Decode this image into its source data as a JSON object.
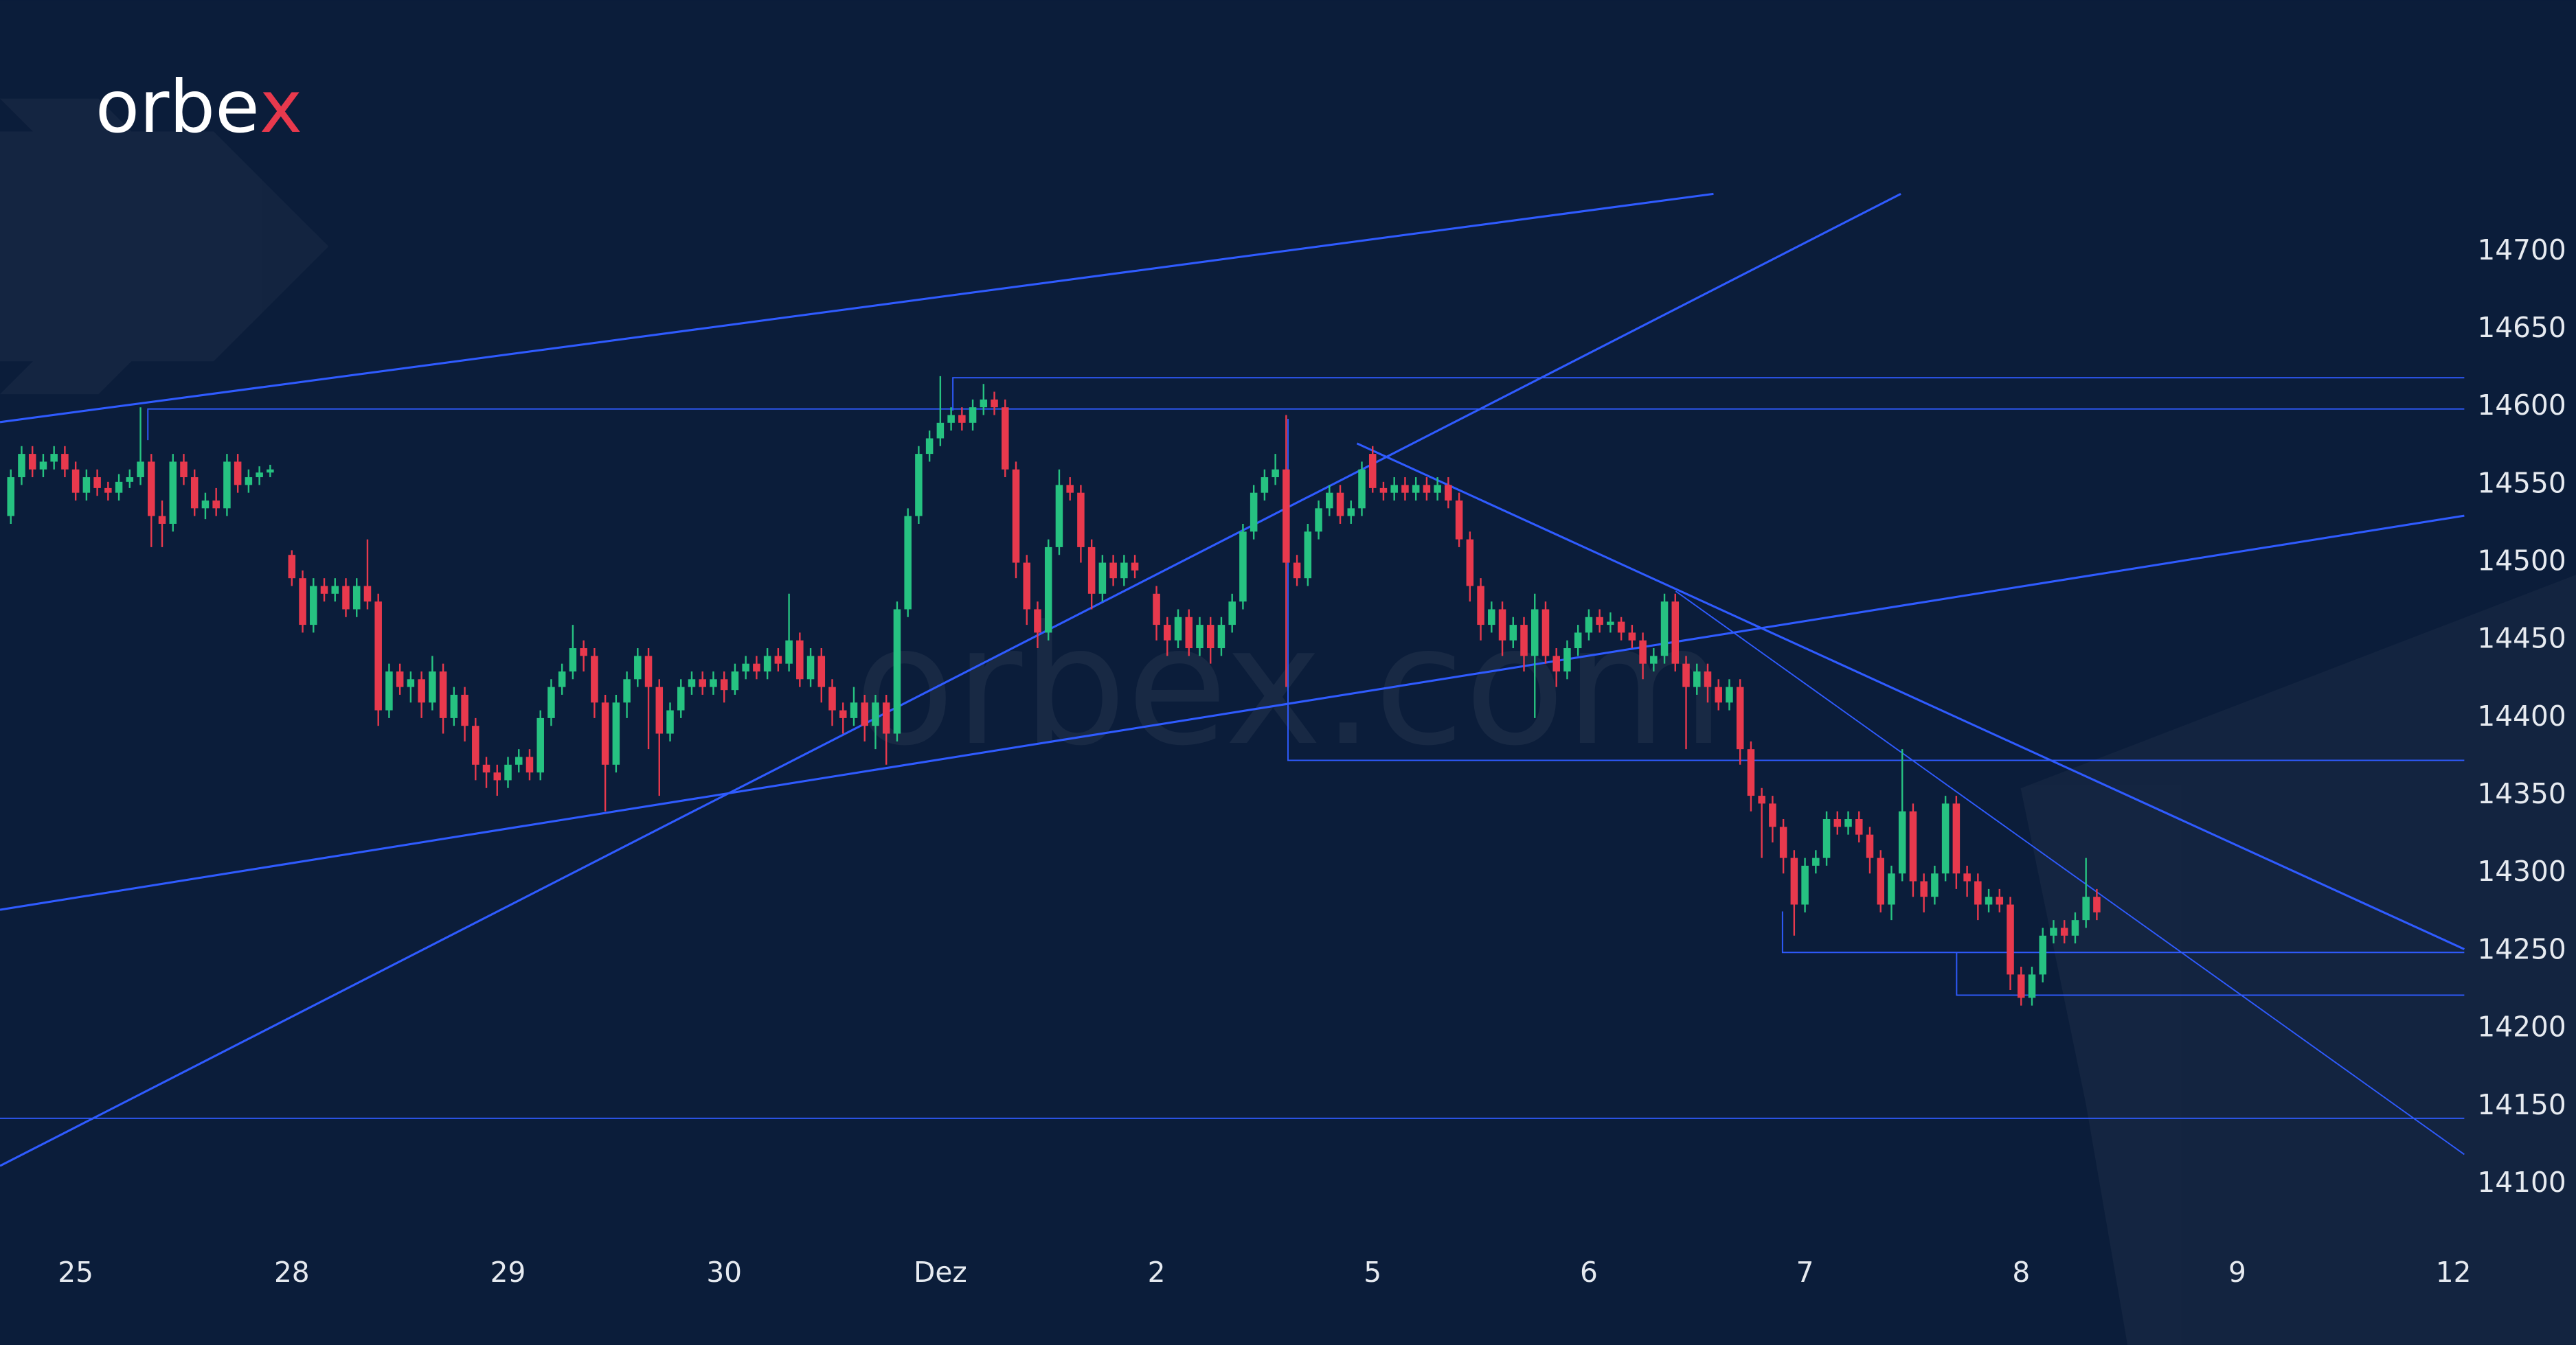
{
  "logo": "orbex",
  "watermark": "orbex.com",
  "chart_data": {
    "type": "candlestick",
    "up_color": "#26c281",
    "down_color": "#e8394d",
    "xlim": [
      -7,
      221
    ],
    "ylim": [
      14059,
      14862
    ],
    "xticks": [
      {
        "value": 0,
        "label": "25"
      },
      {
        "value": 20,
        "label": "28"
      },
      {
        "value": 40,
        "label": "29"
      },
      {
        "value": 60,
        "label": "30"
      },
      {
        "value": 80,
        "label": "Dez"
      },
      {
        "value": 100,
        "label": "2"
      },
      {
        "value": 120,
        "label": "5"
      },
      {
        "value": 140,
        "label": "6"
      },
      {
        "value": 160,
        "label": "7"
      },
      {
        "value": 180,
        "label": "8"
      },
      {
        "value": 200,
        "label": "9"
      },
      {
        "value": 220,
        "label": "12"
      }
    ],
    "yticks": [
      14100,
      14150,
      14200,
      14250,
      14300,
      14350,
      14400,
      14450,
      14500,
      14550,
      14600,
      14650,
      14700
    ],
    "x": [
      -6,
      -5,
      -4,
      -3,
      -2,
      -1,
      0,
      1,
      2,
      3,
      4,
      5,
      6,
      7,
      8,
      9,
      10,
      11,
      12,
      13,
      14,
      15,
      16,
      17,
      18,
      20,
      21,
      22,
      23,
      24,
      25,
      26,
      27,
      28,
      29,
      30,
      31,
      32,
      33,
      34,
      35,
      36,
      37,
      38,
      39,
      40,
      41,
      42,
      43,
      44,
      45,
      46,
      47,
      48,
      49,
      50,
      51,
      52,
      53,
      54,
      55,
      56,
      57,
      58,
      59,
      60,
      61,
      62,
      63,
      64,
      65,
      66,
      67,
      68,
      69,
      70,
      71,
      72,
      73,
      74,
      75,
      76,
      77,
      78,
      79,
      80,
      81,
      82,
      83,
      84,
      85,
      86,
      87,
      88,
      89,
      90,
      91,
      92,
      93,
      94,
      95,
      96,
      97,
      98,
      100,
      101,
      102,
      103,
      104,
      105,
      106,
      107,
      108,
      109,
      110,
      111,
      112,
      113,
      114,
      115,
      116,
      117,
      118,
      119,
      120,
      121,
      122,
      123,
      124,
      125,
      126,
      127,
      128,
      129,
      130,
      131,
      132,
      133,
      134,
      135,
      136,
      137,
      138,
      139,
      140,
      141,
      142,
      143,
      144,
      145,
      146,
      147,
      148,
      149,
      150,
      151,
      152,
      153,
      154,
      155,
      156,
      157,
      158,
      159,
      160,
      161,
      162,
      163,
      164,
      165,
      166,
      167,
      168,
      169,
      170,
      171,
      172,
      173,
      174,
      175,
      176,
      177,
      178,
      179,
      180,
      181,
      182,
      183,
      184,
      185,
      186,
      187
    ],
    "open": [
      14530,
      14555,
      14570,
      14560,
      14565,
      14570,
      14560,
      14545,
      14555,
      14548,
      14545,
      14552,
      14555,
      14565,
      14530,
      14525,
      14565,
      14555,
      14535,
      14540,
      14535,
      14565,
      14550,
      14555,
      14558,
      14505,
      14490,
      14460,
      14485,
      14480,
      14485,
      14470,
      14485,
      14475,
      14405,
      14430,
      14420,
      14425,
      14410,
      14430,
      14400,
      14415,
      14395,
      14370,
      14365,
      14360,
      14370,
      14375,
      14365,
      14400,
      14420,
      14430,
      14445,
      14440,
      14410,
      14370,
      14410,
      14425,
      14440,
      14420,
      14390,
      14405,
      14420,
      14425,
      14420,
      14425,
      14418,
      14430,
      14435,
      14430,
      14440,
      14435,
      14450,
      14425,
      14440,
      14420,
      14405,
      14400,
      14410,
      14395,
      14410,
      14390,
      14470,
      14530,
      14570,
      14580,
      14590,
      14595,
      14590,
      14600,
      14605,
      14600,
      14560,
      14500,
      14470,
      14455,
      14510,
      14550,
      14545,
      14510,
      14480,
      14500,
      14490,
      14500,
      14480,
      14460,
      14450,
      14465,
      14445,
      14460,
      14445,
      14460,
      14475,
      14520,
      14545,
      14555,
      14560,
      14500,
      14490,
      14520,
      14535,
      14545,
      14530,
      14535,
      14570,
      14548,
      14545,
      14550,
      14545,
      14550,
      14545,
      14550,
      14540,
      14515,
      14485,
      14460,
      14470,
      14450,
      14460,
      14440,
      14470,
      14440,
      14430,
      14445,
      14455,
      14465,
      14460,
      14462,
      14455,
      14450,
      14435,
      14440,
      14475,
      14435,
      14420,
      14430,
      14420,
      14410,
      14420,
      14380,
      14350,
      14345,
      14330,
      14310,
      14280,
      14305,
      14310,
      14335,
      14330,
      14335,
      14325,
      14310,
      14280,
      14300,
      14340,
      14295,
      14285,
      14300,
      14345,
      14300,
      14295,
      14280,
      14285,
      14280,
      14235,
      14220,
      14235,
      14260,
      14265,
      14260,
      14270,
      14285
    ],
    "high": [
      14560,
      14575,
      14575,
      14570,
      14575,
      14575,
      14565,
      14560,
      14560,
      14552,
      14557,
      14560,
      14600,
      14570,
      14540,
      14570,
      14570,
      14560,
      14545,
      14548,
      14570,
      14570,
      14560,
      14562,
      14563,
      14508,
      14495,
      14490,
      14490,
      14490,
      14490,
      14490,
      14515,
      14480,
      14435,
      14435,
      14430,
      14430,
      14440,
      14435,
      14420,
      14420,
      14400,
      14375,
      14370,
      14375,
      14380,
      14380,
      14405,
      14425,
      14435,
      14460,
      14450,
      14445,
      14415,
      14415,
      14430,
      14445,
      14445,
      14425,
      14410,
      14425,
      14430,
      14430,
      14430,
      14430,
      14435,
      14440,
      14440,
      14445,
      14445,
      14480,
      14455,
      14445,
      14445,
      14425,
      14410,
      14420,
      14415,
      14415,
      14415,
      14475,
      14535,
      14575,
      14585,
      14620,
      14600,
      14600,
      14605,
      14615,
      14610,
      14605,
      14565,
      14505,
      14475,
      14515,
      14560,
      14555,
      14550,
      14515,
      14505,
      14505,
      14505,
      14505,
      14485,
      14465,
      14470,
      14470,
      14465,
      14465,
      14465,
      14480,
      14525,
      14550,
      14560,
      14570,
      14595,
      14505,
      14525,
      14540,
      14550,
      14550,
      14540,
      14565,
      14575,
      14552,
      14555,
      14555,
      14555,
      14555,
      14555,
      14555,
      14545,
      14520,
      14490,
      14475,
      14475,
      14465,
      14465,
      14480,
      14475,
      14445,
      14450,
      14460,
      14470,
      14470,
      14468,
      14465,
      14460,
      14455,
      14445,
      14480,
      14480,
      14440,
      14435,
      14435,
      14425,
      14425,
      14425,
      14385,
      14355,
      14350,
      14335,
      14315,
      14310,
      14315,
      14340,
      14340,
      14340,
      14340,
      14330,
      14315,
      14305,
      14380,
      14345,
      14300,
      14305,
      14350,
      14350,
      14305,
      14300,
      14290,
      14290,
      14285,
      14240,
      14240,
      14265,
      14270,
      14270,
      14275,
      14310,
      14290
    ],
    "low": [
      14525,
      14550,
      14555,
      14555,
      14560,
      14555,
      14540,
      14540,
      14543,
      14540,
      14540,
      14548,
      14550,
      14510,
      14510,
      14520,
      14550,
      14530,
      14528,
      14530,
      14530,
      14545,
      14545,
      14550,
      14555,
      14485,
      14455,
      14455,
      14475,
      14475,
      14465,
      14465,
      14470,
      14395,
      14400,
      14415,
      14410,
      14400,
      14405,
      14390,
      14395,
      14385,
      14360,
      14355,
      14350,
      14355,
      14365,
      14360,
      14360,
      14395,
      14415,
      14425,
      14430,
      14400,
      14340,
      14365,
      14400,
      14420,
      14380,
      14350,
      14385,
      14400,
      14415,
      14415,
      14415,
      14410,
      14415,
      14425,
      14425,
      14425,
      14430,
      14430,
      14420,
      14420,
      14410,
      14395,
      14390,
      14395,
      14385,
      14380,
      14370,
      14385,
      14465,
      14525,
      14565,
      14575,
      14585,
      14585,
      14585,
      14595,
      14595,
      14555,
      14490,
      14460,
      14445,
      14450,
      14505,
      14540,
      14500,
      14470,
      14475,
      14485,
      14485,
      14490,
      14450,
      14440,
      14445,
      14440,
      14440,
      14435,
      14440,
      14455,
      14470,
      14515,
      14540,
      14550,
      14420,
      14485,
      14485,
      14515,
      14530,
      14525,
      14525,
      14530,
      14545,
      14540,
      14540,
      14540,
      14540,
      14540,
      14540,
      14535,
      14510,
      14475,
      14450,
      14455,
      14440,
      14445,
      14430,
      14400,
      14435,
      14420,
      14425,
      14440,
      14450,
      14455,
      14455,
      14450,
      14445,
      14425,
      14430,
      14435,
      14430,
      14380,
      14415,
      14410,
      14405,
      14405,
      14370,
      14340,
      14310,
      14320,
      14300,
      14260,
      14275,
      14300,
      14305,
      14325,
      14325,
      14320,
      14300,
      14275,
      14270,
      14295,
      14285,
      14275,
      14280,
      14295,
      14290,
      14285,
      14270,
      14275,
      14275,
      14225,
      14215,
      14215,
      14230,
      14255,
      14255,
      14255,
      14265,
      14270
    ],
    "close": [
      14555,
      14570,
      14560,
      14565,
      14570,
      14560,
      14545,
      14555,
      14548,
      14545,
      14552,
      14555,
      14565,
      14530,
      14525,
      14565,
      14555,
      14535,
      14540,
      14535,
      14565,
      14550,
      14555,
      14558,
      14560,
      14490,
      14460,
      14485,
      14480,
      14485,
      14470,
      14485,
      14475,
      14405,
      14430,
      14420,
      14425,
      14410,
      14430,
      14400,
      14415,
      14395,
      14370,
      14365,
      14360,
      14370,
      14375,
      14365,
      14400,
      14420,
      14430,
      14445,
      14440,
      14410,
      14370,
      14410,
      14425,
      14440,
      14420,
      14390,
      14405,
      14420,
      14425,
      14420,
      14425,
      14418,
      14430,
      14435,
      14430,
      14440,
      14435,
      14450,
      14425,
      14440,
      14420,
      14405,
      14400,
      14410,
      14395,
      14410,
      14390,
      14470,
      14530,
      14570,
      14580,
      14590,
      14595,
      14590,
      14600,
      14605,
      14600,
      14560,
      14500,
      14470,
      14455,
      14510,
      14550,
      14545,
      14510,
      14480,
      14500,
      14490,
      14500,
      14495,
      14460,
      14450,
      14465,
      14445,
      14460,
      14445,
      14460,
      14475,
      14520,
      14545,
      14555,
      14560,
      14500,
      14490,
      14520,
      14535,
      14545,
      14530,
      14535,
      14560,
      14548,
      14545,
      14550,
      14545,
      14550,
      14545,
      14550,
      14540,
      14515,
      14485,
      14460,
      14470,
      14450,
      14460,
      14440,
      14470,
      14440,
      14430,
      14445,
      14455,
      14465,
      14460,
      14462,
      14455,
      14450,
      14435,
      14440,
      14475,
      14435,
      14420,
      14430,
      14420,
      14410,
      14420,
      14380,
      14350,
      14345,
      14330,
      14310,
      14280,
      14305,
      14310,
      14335,
      14330,
      14335,
      14325,
      14310,
      14280,
      14300,
      14340,
      14295,
      14285,
      14300,
      14345,
      14300,
      14295,
      14280,
      14285,
      14280,
      14235,
      14220,
      14235,
      14260,
      14265,
      14260,
      14270,
      14285,
      14275
    ]
  }
}
